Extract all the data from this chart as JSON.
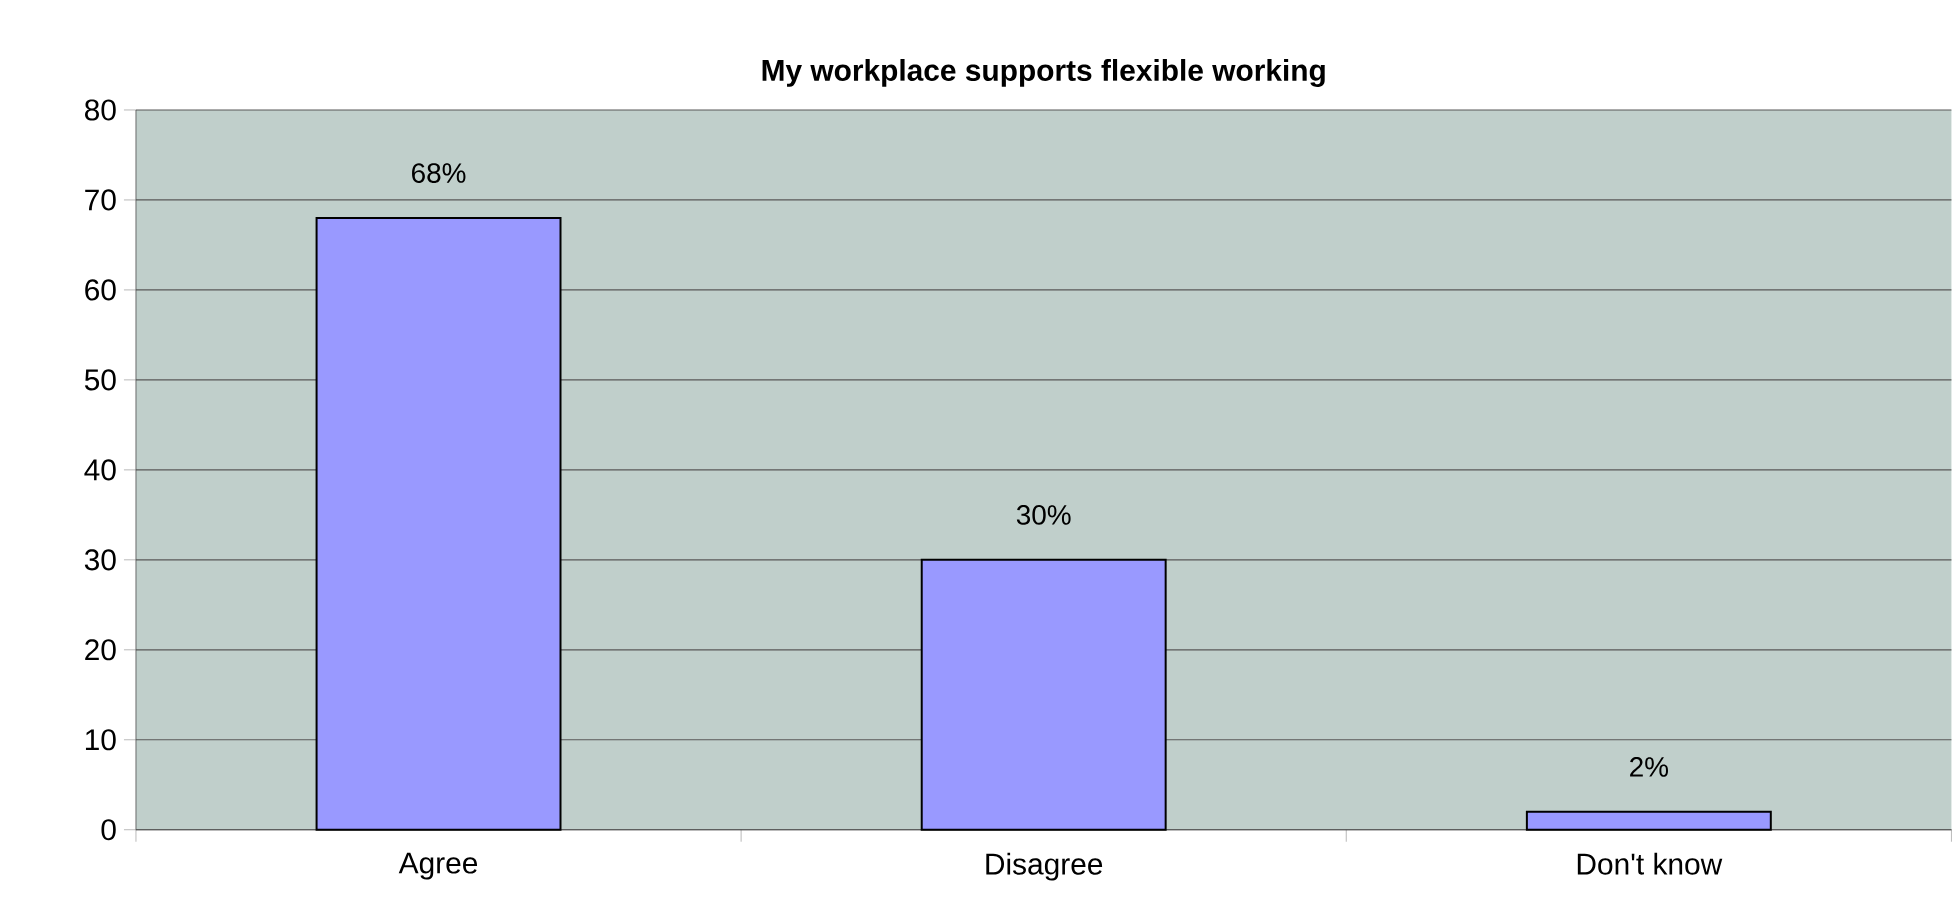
{
  "chart_data": {
    "type": "bar",
    "title": "My workplace supports flexible working",
    "categories": [
      "Agree",
      "Disagree",
      "Don't know"
    ],
    "values": [
      68,
      30,
      2
    ],
    "value_labels": [
      "68%",
      "30%",
      "2%"
    ],
    "color": "#9999ff",
    "ylim": [
      0,
      80
    ],
    "yticks": [
      0,
      10,
      20,
      30,
      40,
      50,
      60,
      70,
      80
    ],
    "grid": "y"
  }
}
